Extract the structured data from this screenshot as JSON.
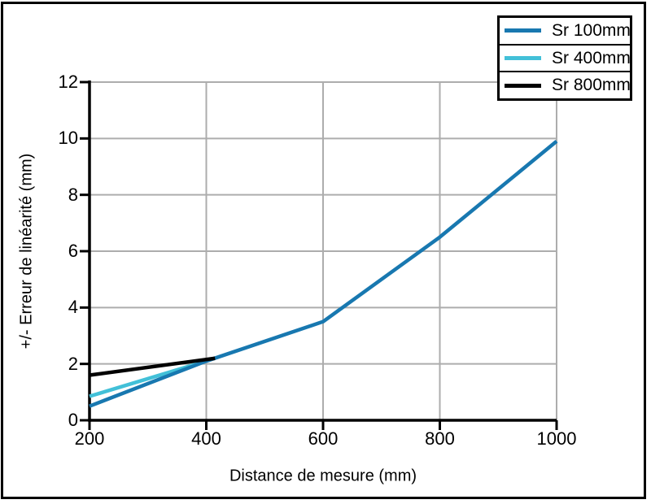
{
  "frame": {
    "background": "#ffffff",
    "border_color": "#000000"
  },
  "colors": {
    "grid": "#adadad",
    "axis": "#000000",
    "text": "#000000"
  },
  "legend": {
    "position": "top-right",
    "items": [
      {
        "label": "Sr 100mm",
        "color": "#1878b0"
      },
      {
        "label": "Sr 400mm",
        "color": "#42c0d8"
      },
      {
        "label": "Sr 800mm",
        "color": "#000000"
      }
    ]
  },
  "chart_data": {
    "type": "line",
    "title": "",
    "xlabel": "Distance de mesure (mm)",
    "ylabel": "+/- Erreur de linéarité (mm)",
    "xlim": [
      200,
      1000
    ],
    "ylim": [
      0,
      12
    ],
    "x_ticks": [
      200,
      400,
      600,
      800,
      1000
    ],
    "y_ticks": [
      0,
      2,
      4,
      6,
      8,
      10,
      12
    ],
    "x_tick_labels": [
      "200",
      "400",
      "600",
      "800",
      "1000"
    ],
    "y_tick_labels": [
      "0",
      "2",
      "4",
      "6",
      "8",
      "10",
      "12"
    ],
    "grid": true,
    "legend_position": "top-right",
    "series": [
      {
        "name": "Sr 100mm",
        "color": "#1878b0",
        "points": [
          [
            200,
            0.5
          ],
          [
            400,
            2.1
          ],
          [
            600,
            3.5
          ],
          [
            800,
            6.5
          ],
          [
            1000,
            9.9
          ]
        ]
      },
      {
        "name": "Sr 400mm",
        "color": "#42c0d8",
        "points": [
          [
            200,
            0.85
          ],
          [
            400,
            2.1
          ]
        ]
      },
      {
        "name": "Sr 800mm",
        "color": "#000000",
        "points": [
          [
            200,
            1.6
          ],
          [
            415,
            2.2
          ]
        ]
      }
    ]
  }
}
